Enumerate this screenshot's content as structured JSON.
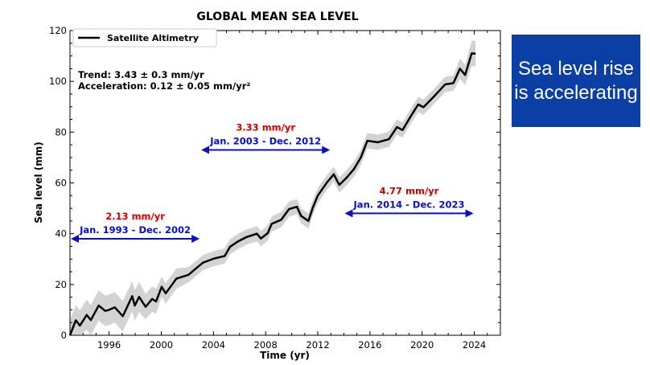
{
  "callout": {
    "text": "Sea level rise is accelerating",
    "background": "#0b3fa6"
  },
  "chart_data": {
    "type": "line",
    "title": "GLOBAL MEAN SEA LEVEL",
    "xlabel": "Time (yr)",
    "ylabel": "Sea level (mm)",
    "xlim": [
      1993,
      2026
    ],
    "ylim": [
      0,
      120
    ],
    "xticks": [
      1996,
      2000,
      2004,
      2008,
      2012,
      2016,
      2020,
      2024
    ],
    "yticks": [
      0,
      20,
      40,
      60,
      80,
      100,
      120
    ],
    "grid": false,
    "legend": {
      "position": "top-left",
      "entries": [
        "Satellite Altimetry"
      ]
    },
    "series": [
      {
        "name": "Satellite Altimetry",
        "color": "#000000",
        "band_color": "#d3d3d3",
        "x": [
          1993.0,
          1993.45,
          1993.76,
          1994.28,
          1994.6,
          1995.2,
          1995.7,
          1996.0,
          1996.43,
          1997.05,
          1997.77,
          1997.97,
          1998.3,
          1998.8,
          1999.3,
          1999.6,
          2000.03,
          2000.34,
          2001.16,
          2002.09,
          2002.7,
          2003.2,
          2004.04,
          2004.86,
          2005.28,
          2005.9,
          2006.5,
          2007.33,
          2007.64,
          2008.16,
          2008.47,
          2009.2,
          2009.8,
          2010.4,
          2010.72,
          2011.28,
          2011.6,
          2012.0,
          2012.72,
          2013.23,
          2013.65,
          2014.2,
          2014.78,
          2015.3,
          2015.8,
          2016.6,
          2017.45,
          2018.07,
          2018.5,
          2019.1,
          2019.7,
          2020.1,
          2020.9,
          2021.77,
          2022.4,
          2022.9,
          2023.3,
          2023.8,
          2024.1
        ],
        "y": [
          0,
          5.9,
          3.8,
          8,
          6,
          11.7,
          9.6,
          10,
          11,
          7.5,
          15.4,
          11.7,
          15.1,
          11.2,
          14.3,
          13.3,
          19.1,
          16.5,
          22.3,
          23.8,
          26.5,
          28.6,
          30.2,
          31.2,
          34.9,
          37,
          38.6,
          40,
          38.1,
          40.2,
          43.9,
          45.5,
          49.7,
          50.6,
          47,
          45,
          50,
          55,
          60.3,
          63.4,
          59.2,
          62,
          65.5,
          70,
          76.6,
          76,
          77.2,
          82,
          80.8,
          86,
          90.9,
          89.8,
          94,
          98.8,
          99.3,
          105,
          102.5,
          111,
          110.9
        ],
        "uncertainty": [
          6,
          6,
          6,
          6,
          6,
          6,
          6,
          6,
          6,
          6,
          6,
          6,
          6,
          5,
          5,
          5,
          4,
          4,
          4,
          3,
          3,
          3,
          3,
          3,
          3,
          3,
          3,
          3,
          3,
          3,
          3,
          3,
          3,
          3,
          3,
          3,
          3,
          3,
          3,
          3,
          3,
          3,
          3,
          3,
          3,
          3,
          3,
          3,
          3,
          3,
          3,
          3,
          3,
          3,
          3,
          4,
          4,
          5,
          5
        ]
      }
    ],
    "annotations": {
      "trend": "Trend: 3.43 ± 0.3 mm/yr",
      "acceleration": "Acceleration: 0.12 ± 0.05 mm/yr²",
      "periods": [
        {
          "rate": "2.13 mm/yr",
          "label": "Jan. 1993 - Dec. 2002",
          "x_range": [
            1993,
            2003
          ],
          "y": 38
        },
        {
          "rate": "3.33 mm/yr",
          "label": "Jan. 2003 - Dec. 2012",
          "x_range": [
            2003,
            2013
          ],
          "y": 73
        },
        {
          "rate": "4.77 mm/yr",
          "label": "Jan. 2014 - Dec. 2023",
          "x_range": [
            2014,
            2024
          ],
          "y": 48
        }
      ],
      "rate_color": "#d40000",
      "period_color": "#0a10c8"
    }
  }
}
